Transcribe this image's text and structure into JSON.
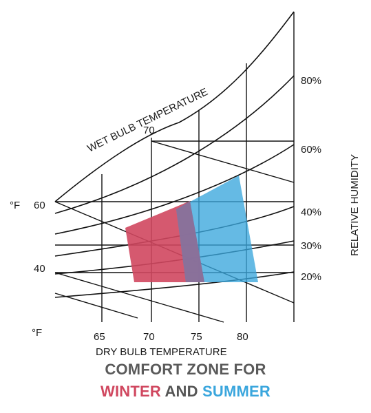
{
  "labels": {
    "wet_bulb": "WET BULB TEMPERATURE",
    "wet_bulb_70": "70",
    "dry_bulb": "DRY BULB TEMPERATURE",
    "relative_humidity": "RELATIVE HUMIDITY",
    "unit_top": "°F",
    "unit_bottom": "°F",
    "y_60": "60",
    "y_40": "40",
    "x_ticks": [
      "65",
      "70",
      "75",
      "80"
    ],
    "rh_ticks": [
      "80%",
      "60%",
      "40%",
      "30%",
      "20%"
    ]
  },
  "caption": {
    "line1": "COMFORT ZONE FOR",
    "winter": "WINTER",
    "and": "AND",
    "summer": "SUMMER"
  },
  "colors": {
    "winter": "#d0475f",
    "summer": "#3aa6dd",
    "overlap": "#8c6f98",
    "lines": "#111111"
  }
}
